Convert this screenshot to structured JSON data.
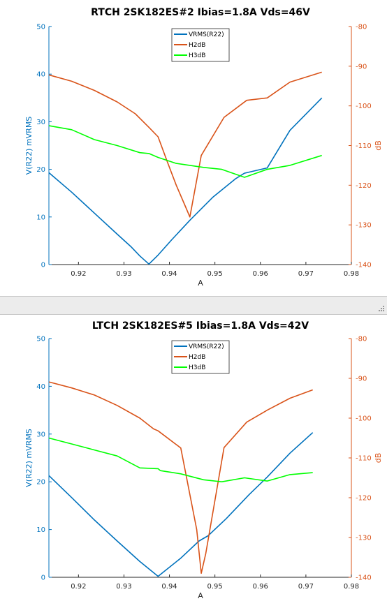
{
  "charts": [
    {
      "title": "RTCH 2SK182ES#2 Ibias=1.8A Vds=46V",
      "xlabel": "A",
      "ylabel_left": "V(R22) mVRMS",
      "ylabel_right": "dB",
      "xticks": [
        "0.92",
        "0.93",
        "0.94",
        "0.95",
        "0.96",
        "0.97",
        "0.98"
      ],
      "yticks_left": [
        "0",
        "10",
        "20",
        "30",
        "40",
        "50"
      ],
      "yticks_right": [
        "-140",
        "-130",
        "-120",
        "-110",
        "-100",
        "-90",
        "-80"
      ],
      "legend": [
        "VRMS(R22)",
        "H2dB",
        "H3dB"
      ]
    },
    {
      "title": "LTCH 2SK182ES#5 Ibias=1.8A Vds=42V",
      "xlabel": "A",
      "ylabel_left": "V(R22) mVRMS",
      "ylabel_right": "dB",
      "xticks": [
        "0.92",
        "0.93",
        "0.94",
        "0.95",
        "0.96",
        "0.97",
        "0.98"
      ],
      "yticks_left": [
        "0",
        "10",
        "20",
        "30",
        "40",
        "50"
      ],
      "yticks_right": [
        "-140",
        "-130",
        "-120",
        "-110",
        "-100",
        "-90",
        "-80"
      ],
      "legend": [
        "VRMS(R22)",
        "H2dB",
        "H3dB"
      ]
    }
  ],
  "chart_data": [
    {
      "type": "line",
      "title": "RTCH 2SK182ES#2 Ibias=1.8A Vds=46V",
      "xlabel": "A",
      "ylabel": "V(R22) mVRMS",
      "y2label": "dB",
      "xlim": [
        0.9135,
        0.98
      ],
      "ylim": [
        0,
        50
      ],
      "y2lim": [
        -140,
        -80
      ],
      "legend_position": "top-center",
      "series": [
        {
          "name": "VRMS(R22)",
          "axis": "left",
          "color": "#0072bd",
          "x": [
            0.9135,
            0.9185,
            0.9235,
            0.9285,
            0.9315,
            0.9335,
            0.9355,
            0.9375,
            0.9405,
            0.9445,
            0.9495,
            0.9545,
            0.9565,
            0.9615,
            0.9665,
            0.9735
          ],
          "y": [
            19.3,
            15.2,
            10.8,
            6.4,
            3.8,
            1.8,
            0.1,
            2.0,
            5.2,
            9.3,
            14.1,
            18.0,
            19.2,
            20.3,
            28.2,
            35.0
          ]
        },
        {
          "name": "H2dB",
          "axis": "right",
          "color": "#d95319",
          "x": [
            0.9135,
            0.9185,
            0.9235,
            0.9285,
            0.9325,
            0.9355,
            0.9375,
            0.9395,
            0.9415,
            0.9435,
            0.9445,
            0.947,
            0.952,
            0.957,
            0.9615,
            0.9665,
            0.9735
          ],
          "y": [
            -92.2,
            -93.8,
            -96.1,
            -99.0,
            -102.0,
            -105.4,
            -107.8,
            -114.0,
            -120.0,
            -125.3,
            -128.0,
            -112.5,
            -102.9,
            -98.6,
            -98.0,
            -94.0,
            -91.5
          ]
        },
        {
          "name": "H3dB",
          "axis": "right",
          "color": "#00ff00",
          "x": [
            0.9135,
            0.9185,
            0.9235,
            0.9285,
            0.9335,
            0.9355,
            0.9375,
            0.9415,
            0.9475,
            0.9515,
            0.9565,
            0.9615,
            0.9665,
            0.9735
          ],
          "y": [
            -105.0,
            -106.0,
            -108.5,
            -110.0,
            -111.8,
            -112.0,
            -113.0,
            -114.5,
            -115.5,
            -116.0,
            -118.0,
            -116.0,
            -115.0,
            -112.5
          ]
        }
      ]
    },
    {
      "type": "line",
      "title": "LTCH 2SK182ES#5 Ibias=1.8A Vds=42V",
      "xlabel": "A",
      "ylabel": "V(R22) mVRMS",
      "y2label": "dB",
      "xlim": [
        0.9135,
        0.98
      ],
      "ylim": [
        0,
        50
      ],
      "y2lim": [
        -140,
        -80
      ],
      "legend_position": "top-center",
      "series": [
        {
          "name": "VRMS(R22)",
          "axis": "left",
          "color": "#0072bd",
          "x": [
            0.9135,
            0.9185,
            0.9235,
            0.9285,
            0.9335,
            0.9375,
            0.9425,
            0.9465,
            0.9485,
            0.9525,
            0.9575,
            0.9615,
            0.9665,
            0.9715
          ],
          "y": [
            21.3,
            16.7,
            12.0,
            7.6,
            3.3,
            0.2,
            4.0,
            7.6,
            8.7,
            12.3,
            17.3,
            21.0,
            26.0,
            30.3
          ]
        },
        {
          "name": "H2dB",
          "axis": "right",
          "color": "#d95319",
          "x": [
            0.9135,
            0.9185,
            0.9235,
            0.9285,
            0.9335,
            0.9365,
            0.9375,
            0.9425,
            0.946,
            0.947,
            0.948,
            0.952,
            0.957,
            0.9615,
            0.9665,
            0.9715
          ],
          "y": [
            -90.9,
            -92.4,
            -94.2,
            -96.8,
            -100.0,
            -102.7,
            -103.2,
            -107.5,
            -128.0,
            -139.0,
            -134.0,
            -107.4,
            -101.0,
            -98.0,
            -95.0,
            -92.9
          ]
        },
        {
          "name": "H3dB",
          "axis": "right",
          "color": "#00ff00",
          "x": [
            0.9135,
            0.9185,
            0.9235,
            0.9285,
            0.9335,
            0.9375,
            0.938,
            0.9425,
            0.9475,
            0.9515,
            0.9565,
            0.9615,
            0.9665,
            0.9715
          ],
          "y": [
            -105.0,
            -106.5,
            -108.0,
            -109.5,
            -112.5,
            -112.7,
            -113.2,
            -114.0,
            -115.5,
            -116.0,
            -115.0,
            -115.8,
            -114.2,
            -113.7
          ]
        }
      ]
    }
  ]
}
